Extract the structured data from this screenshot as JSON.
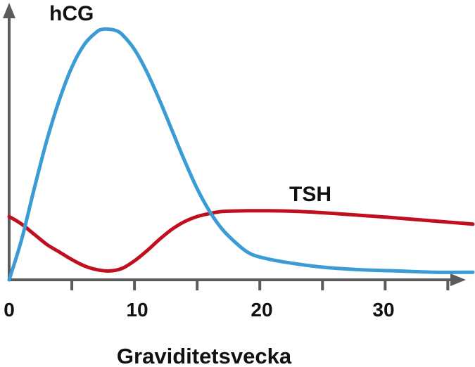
{
  "chart_data": {
    "type": "line",
    "title": "",
    "xlabel": "Graviditetsvecka",
    "ylabel": "",
    "xlim": [
      0,
      37
    ],
    "ylim": [
      0,
      1
    ],
    "xticks": [
      0,
      5,
      10,
      15,
      20,
      25,
      30,
      35
    ],
    "xtick_labels": [
      {
        "value": 0,
        "label": "0"
      },
      {
        "value": 10,
        "label": "10"
      },
      {
        "value": 20,
        "label": "20"
      },
      {
        "value": 30,
        "label": "30"
      }
    ],
    "grid": false,
    "legend": "none",
    "series": [
      {
        "name": "hCG",
        "color": "#3a9bd5",
        "x": [
          0,
          1,
          2,
          3,
          4,
          5,
          6,
          7,
          7.5,
          8,
          8.5,
          9,
          10,
          11,
          12,
          13,
          14,
          15,
          16,
          17,
          18,
          19,
          20,
          22,
          25,
          28,
          31,
          34,
          37
        ],
        "y": [
          0.0,
          0.16,
          0.36,
          0.55,
          0.71,
          0.84,
          0.93,
          0.98,
          0.99,
          0.99,
          0.985,
          0.97,
          0.91,
          0.82,
          0.71,
          0.59,
          0.47,
          0.36,
          0.27,
          0.2,
          0.15,
          0.11,
          0.09,
          0.07,
          0.05,
          0.04,
          0.035,
          0.03,
          0.03
        ]
      },
      {
        "name": "TSH",
        "color": "#c0101f",
        "x": [
          0,
          1,
          2,
          3,
          4,
          5,
          6,
          7,
          8,
          9,
          10,
          11,
          12,
          13,
          14,
          15,
          16,
          17,
          18,
          19,
          20,
          22,
          24,
          26,
          28,
          30,
          32,
          34,
          37
        ],
        "y": [
          0.25,
          0.22,
          0.18,
          0.14,
          0.11,
          0.08,
          0.055,
          0.04,
          0.035,
          0.045,
          0.075,
          0.115,
          0.16,
          0.2,
          0.23,
          0.25,
          0.262,
          0.27,
          0.272,
          0.273,
          0.273,
          0.272,
          0.268,
          0.262,
          0.255,
          0.248,
          0.24,
          0.232,
          0.22
        ]
      }
    ],
    "annotations": [
      {
        "text": "hCG",
        "series": "hCG"
      },
      {
        "text": "TSH",
        "series": "TSH"
      }
    ]
  }
}
